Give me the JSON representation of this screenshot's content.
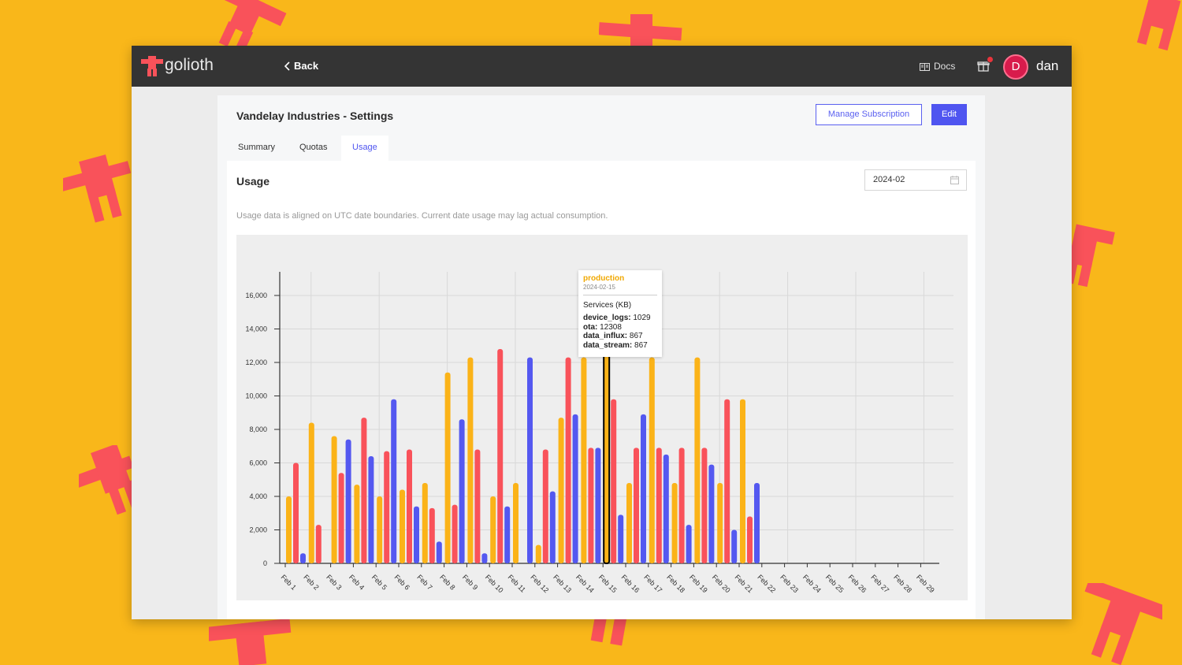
{
  "app": {
    "brand": "golioth"
  },
  "nav": {
    "back_label": "Back",
    "docs_label": "Docs",
    "user_initial": "D",
    "username": "dan"
  },
  "page": {
    "title": "Vandelay Industries - Settings",
    "manage_label": "Manage Subscription",
    "edit_label": "Edit"
  },
  "tabs": [
    {
      "label": "Summary"
    },
    {
      "label": "Quotas"
    },
    {
      "label": "Usage"
    }
  ],
  "usage": {
    "title": "Usage",
    "month": "2024-02",
    "note": "Usage data is aligned on UTC date boundaries. Current date usage may lag actual consumption."
  },
  "tooltip": {
    "project": "production",
    "date": "2024-02-15",
    "heading": "Services (KB)",
    "rows": [
      {
        "key": "device_logs:",
        "value": "1029"
      },
      {
        "key": "ota:",
        "value": "12308"
      },
      {
        "key": "data_influx:",
        "value": "867"
      },
      {
        "key": "data_stream:",
        "value": "867"
      }
    ]
  },
  "colors": {
    "accent": "#4f55f0",
    "orange": "#fbb318",
    "red": "#f9525a",
    "blue": "#5458f0",
    "topbar": "#343434",
    "background": "#f9b71a"
  },
  "chart_data": {
    "type": "bar",
    "ylim": [
      0,
      17000
    ],
    "yticks": [
      0,
      2000,
      4000,
      6000,
      8000,
      10000,
      12000,
      14000,
      16000
    ],
    "ytick_labels": [
      "0",
      "2,000",
      "4,000",
      "6,000",
      "8,000",
      "10,000",
      "12,000",
      "14,000",
      "16,000"
    ],
    "categories": [
      "Feb 1",
      "Feb 2",
      "Feb 3",
      "Feb 4",
      "Feb 5",
      "Feb 6",
      "Feb 7",
      "Feb 8",
      "Feb 9",
      "Feb 10",
      "Feb 11",
      "Feb 12",
      "Feb 13",
      "Feb 14",
      "Feb 15",
      "Feb 16",
      "Feb 17",
      "Feb 18",
      "Feb 19",
      "Feb 20",
      "Feb 21",
      "Feb 22",
      "Feb 23",
      "Feb 24",
      "Feb 25",
      "Feb 26",
      "Feb 27",
      "Feb 28",
      "Feb 29"
    ],
    "grid": true,
    "series": [
      {
        "color": "#fbb318",
        "values": [
          4000,
          8400,
          7600,
          4700,
          4000,
          4400,
          4800,
          11400,
          12300,
          4000,
          4800,
          1100,
          8700,
          12300,
          13000,
          4800,
          12300,
          4800,
          12300,
          4800,
          9800,
          0,
          0,
          0,
          0,
          0,
          0,
          0,
          0
        ]
      },
      {
        "color": "#f9525a",
        "values": [
          6000,
          2300,
          5400,
          8700,
          6700,
          6800,
          3300,
          3500,
          6800,
          12800,
          0,
          6800,
          12300,
          6900,
          9800,
          6900,
          6900,
          6900,
          6900,
          9800,
          2800,
          0,
          0,
          0,
          0,
          0,
          0,
          0,
          0
        ]
      },
      {
        "color": "#5458f0",
        "values": [
          600,
          0,
          7400,
          6400,
          9800,
          3400,
          1300,
          8600,
          600,
          3400,
          12300,
          4300,
          8900,
          6900,
          2900,
          8900,
          6500,
          2300,
          5900,
          2000,
          4800,
          0,
          0,
          0,
          0,
          0,
          0,
          0,
          0
        ]
      }
    ],
    "highlight": {
      "category": "Feb 15",
      "series": 0,
      "value": 13000
    }
  }
}
